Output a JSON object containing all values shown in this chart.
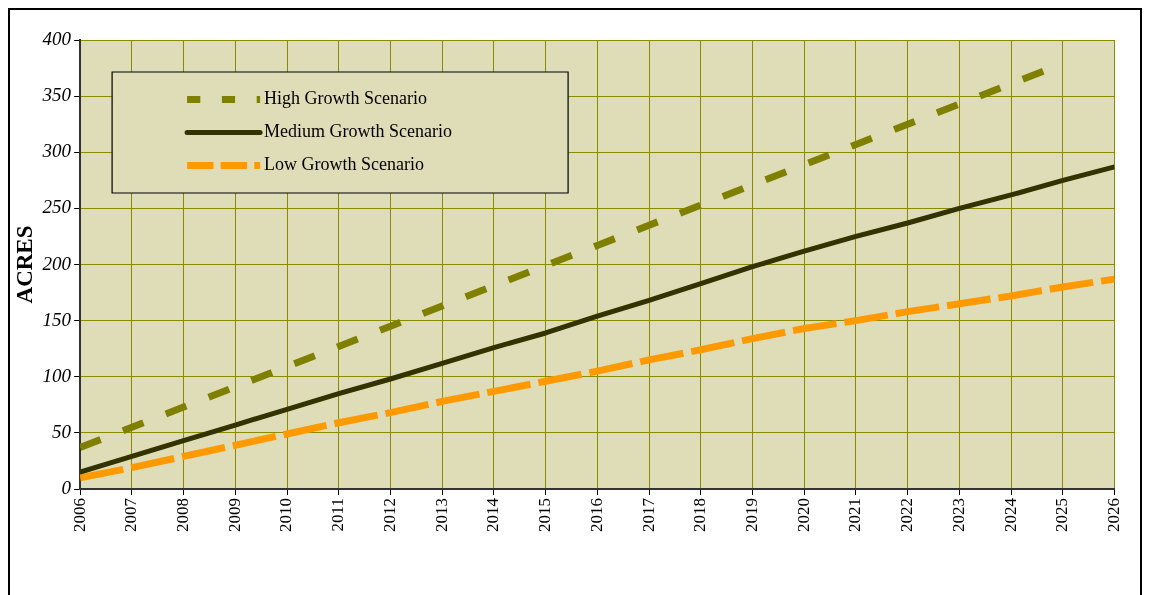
{
  "chart_data": {
    "type": "line",
    "ylabel": "ACRES",
    "x": [
      2006,
      2007,
      2008,
      2009,
      2010,
      2011,
      2012,
      2013,
      2014,
      2015,
      2016,
      2017,
      2018,
      2019,
      2020,
      2021,
      2022,
      2023,
      2024,
      2025,
      2026
    ],
    "xlim": [
      2006,
      2026
    ],
    "xticks": [
      2006,
      2007,
      2008,
      2009,
      2010,
      2011,
      2012,
      2013,
      2014,
      2015,
      2016,
      2017,
      2018,
      2019,
      2020,
      2021,
      2022,
      2023,
      2024,
      2025,
      2026
    ],
    "ylim": [
      0,
      400
    ],
    "yticks": [
      0,
      50,
      100,
      150,
      200,
      250,
      300,
      350,
      400
    ],
    "grid": true,
    "legend": "top left",
    "marker": "none",
    "series": [
      {
        "name": "High Growth Scenario",
        "color": "#808000",
        "line_style": "dashed",
        "values": [
          37,
          55,
          73,
          91,
          109,
          127,
          145,
          163,
          181,
          199,
          217,
          235,
          253,
          271,
          289,
          307,
          325,
          343,
          361,
          379,
          null
        ]
      },
      {
        "name": "Medium Growth Scenario",
        "color": "#333300",
        "line_style": "solid",
        "values": [
          15,
          29,
          43,
          57,
          71,
          85,
          98,
          112,
          126,
          139,
          154,
          168,
          183,
          198,
          212,
          225,
          237,
          250,
          262,
          275,
          287
        ]
      },
      {
        "name": "Low Growth Scenario",
        "color": "#ff9900",
        "line_style": "dashed",
        "values": [
          10,
          19,
          29,
          39,
          49,
          59,
          68,
          78,
          87,
          96,
          105,
          115,
          124,
          134,
          143,
          150,
          158,
          165,
          172,
          180,
          187
        ]
      }
    ]
  }
}
